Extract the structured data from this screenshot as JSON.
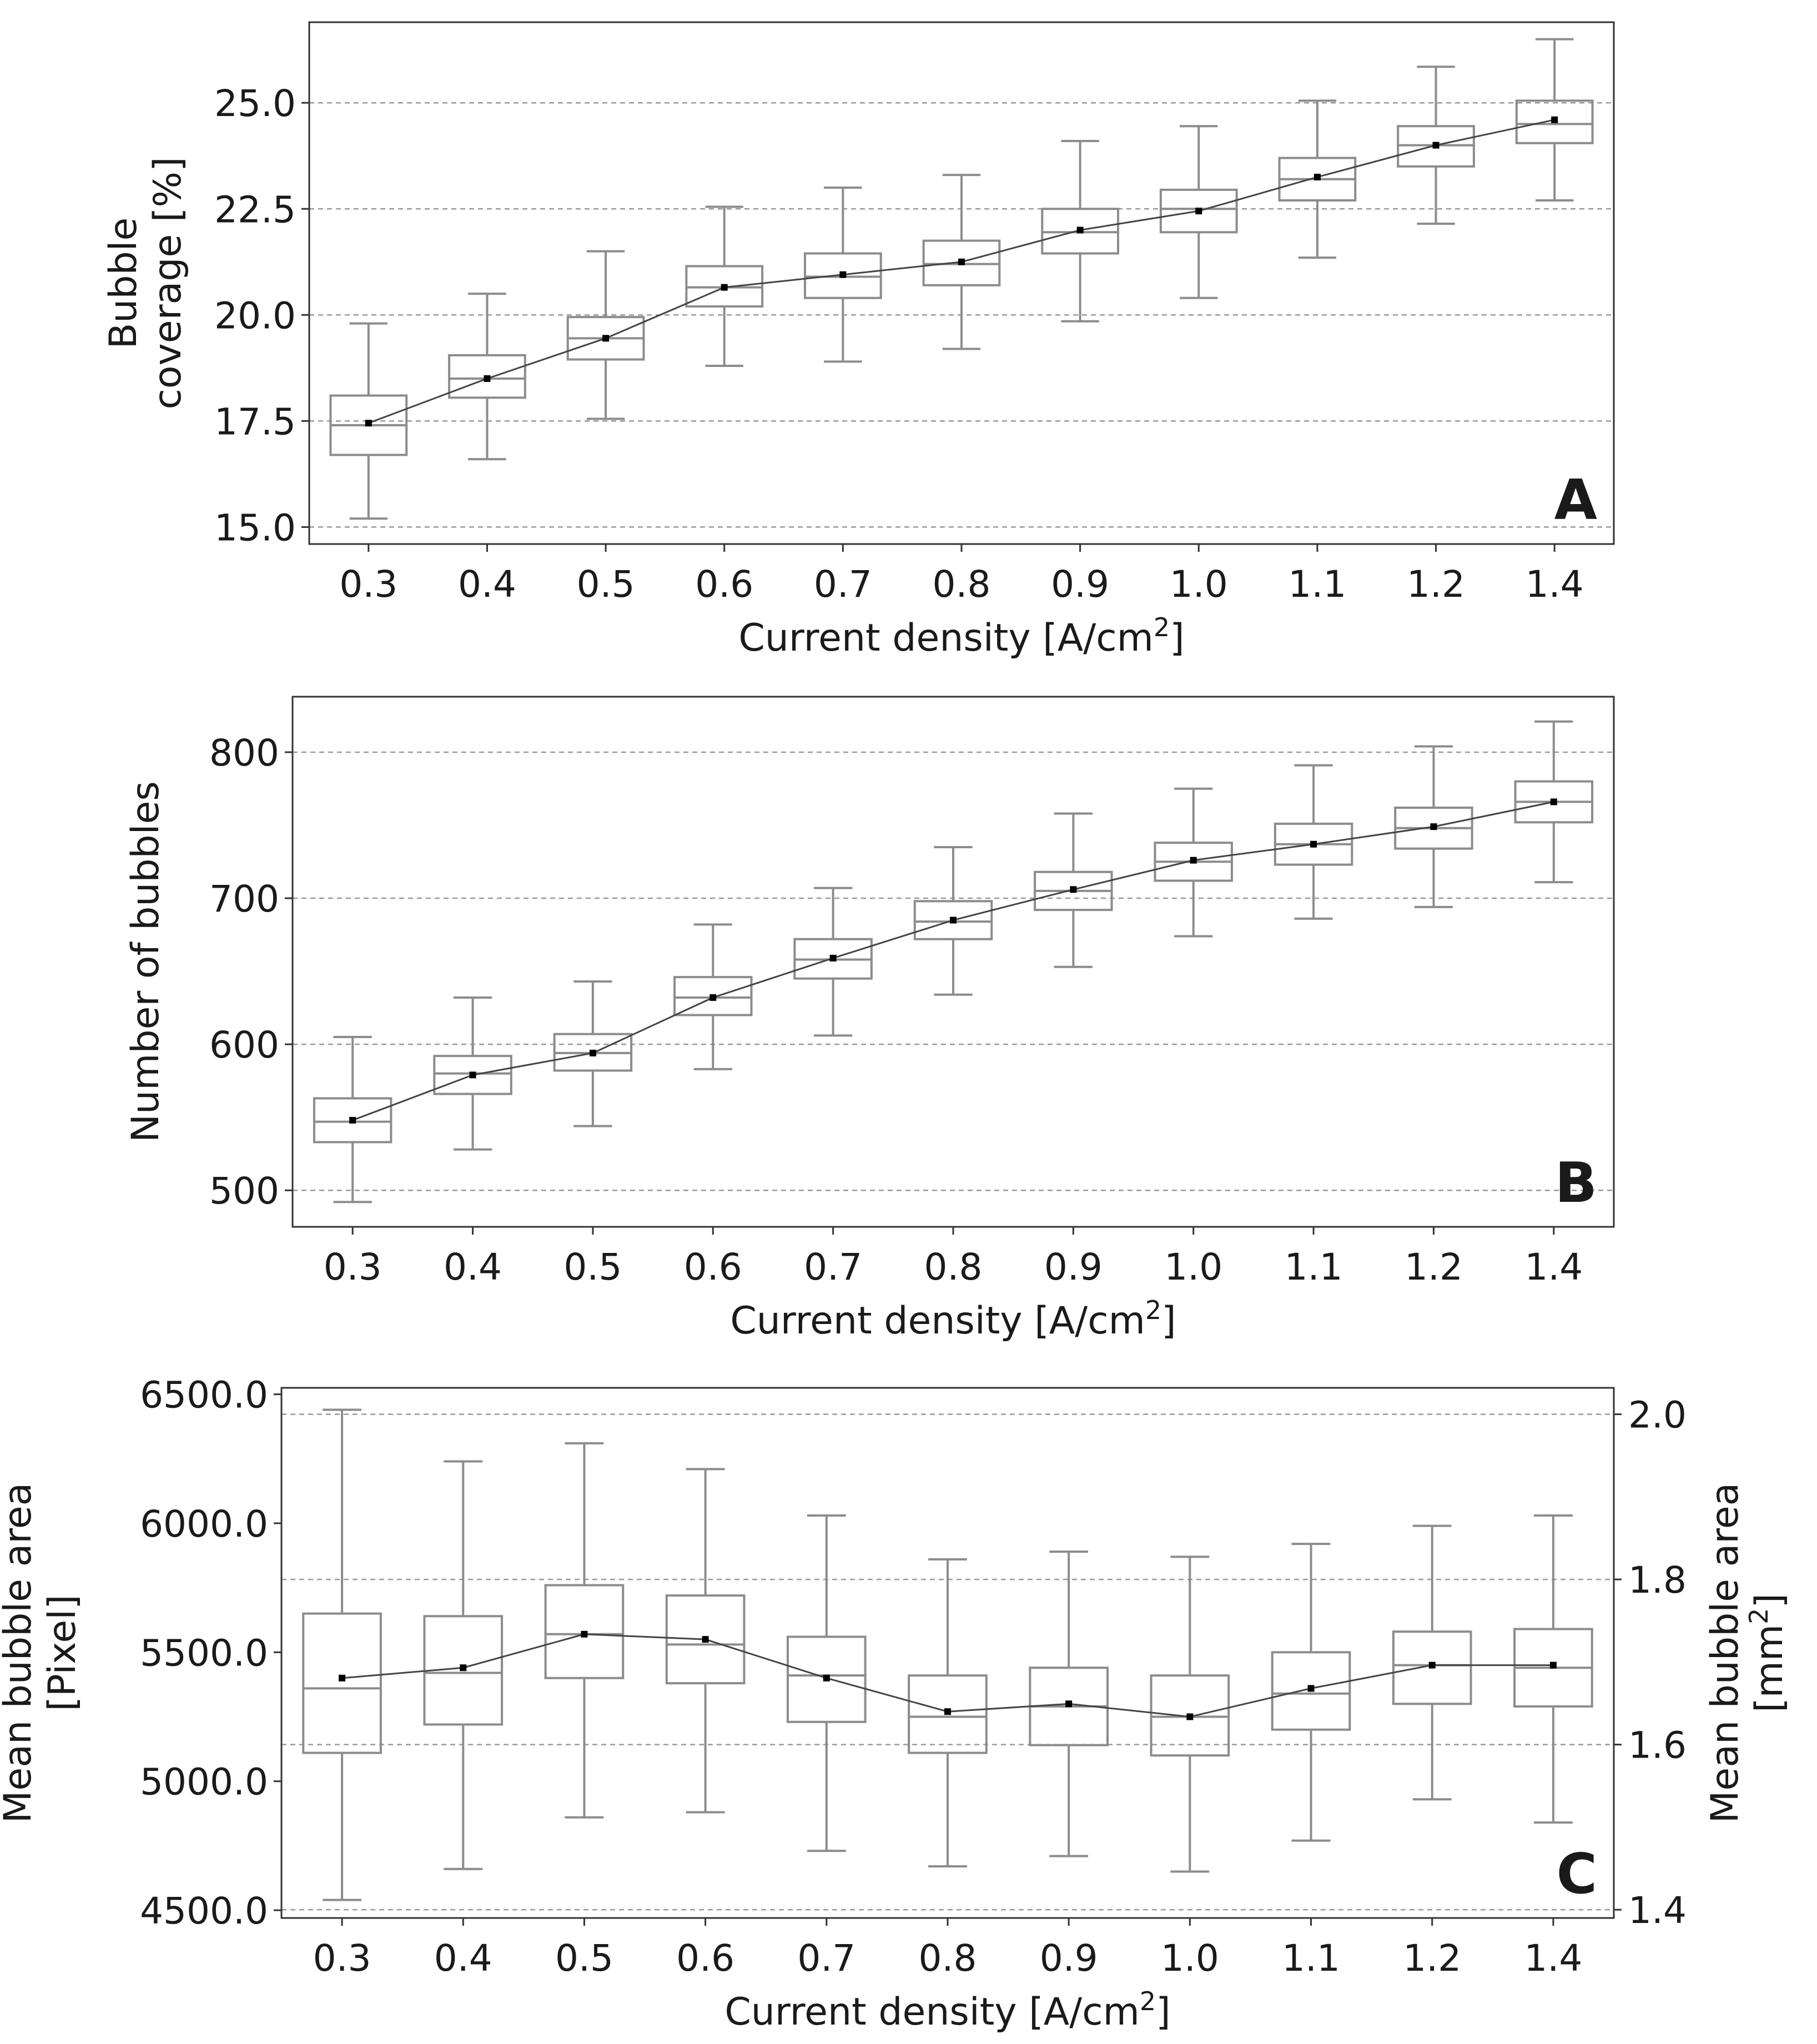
{
  "chart_data": [
    {
      "type": "box",
      "panel_label": "A",
      "title": "",
      "xlabel": "Current density [A/cm",
      "xlabel_sup": "2",
      "xlabel_close": "]",
      "ylabel": [
        "Bubble",
        "coverage [%]"
      ],
      "ylim": [
        14.6,
        26.9
      ],
      "yticks": [
        15.0,
        17.5,
        20.0,
        22.5,
        25.0
      ],
      "ytick_labels": [
        "15.0",
        "17.5",
        "20.0",
        "22.5",
        "25.0"
      ],
      "grid": "horizontal dashed",
      "categories": [
        "0.3",
        "0.4",
        "0.5",
        "0.6",
        "0.7",
        "0.8",
        "0.9",
        "1.0",
        "1.1",
        "1.2",
        "1.4"
      ],
      "boxes": [
        {
          "whislo": 15.2,
          "q1": 16.7,
          "med": 17.4,
          "q3": 18.1,
          "whishi": 19.8
        },
        {
          "whislo": 16.6,
          "q1": 18.05,
          "med": 18.5,
          "q3": 19.05,
          "whishi": 20.5
        },
        {
          "whislo": 17.55,
          "q1": 18.95,
          "med": 19.45,
          "q3": 19.95,
          "whishi": 21.5
        },
        {
          "whislo": 18.8,
          "q1": 20.2,
          "med": 20.65,
          "q3": 21.15,
          "whishi": 22.55
        },
        {
          "whislo": 18.9,
          "q1": 20.4,
          "med": 20.9,
          "q3": 21.45,
          "whishi": 23.0
        },
        {
          "whislo": 19.2,
          "q1": 20.7,
          "med": 21.2,
          "q3": 21.75,
          "whishi": 23.3
        },
        {
          "whislo": 19.85,
          "q1": 21.45,
          "med": 21.95,
          "q3": 22.5,
          "whishi": 24.1
        },
        {
          "whislo": 20.4,
          "q1": 21.95,
          "med": 22.5,
          "q3": 22.95,
          "whishi": 24.45
        },
        {
          "whislo": 21.35,
          "q1": 22.7,
          "med": 23.2,
          "q3": 23.7,
          "whishi": 25.05
        },
        {
          "whislo": 22.15,
          "q1": 23.5,
          "med": 24.0,
          "q3": 24.45,
          "whishi": 25.85
        },
        {
          "whislo": 22.7,
          "q1": 24.05,
          "med": 24.5,
          "q3": 25.05,
          "whishi": 26.5
        }
      ],
      "means": [
        17.45,
        18.5,
        19.45,
        20.65,
        20.95,
        21.25,
        22.0,
        22.45,
        23.25,
        24.0,
        24.6
      ]
    },
    {
      "type": "box",
      "panel_label": "B",
      "title": "",
      "xlabel": "Current density [A/cm",
      "xlabel_sup": "2",
      "xlabel_close": "]",
      "ylabel": [
        "Number of bubbles"
      ],
      "ylim": [
        475,
        838
      ],
      "yticks": [
        500,
        600,
        700,
        800
      ],
      "ytick_labels": [
        "500",
        "600",
        "700",
        "800"
      ],
      "grid": "horizontal dashed",
      "categories": [
        "0.3",
        "0.4",
        "0.5",
        "0.6",
        "0.7",
        "0.8",
        "0.9",
        "1.0",
        "1.1",
        "1.2",
        "1.4"
      ],
      "boxes": [
        {
          "whislo": 492,
          "q1": 533,
          "med": 547,
          "q3": 563,
          "whishi": 605
        },
        {
          "whislo": 528,
          "q1": 566,
          "med": 580,
          "q3": 592,
          "whishi": 632
        },
        {
          "whislo": 544,
          "q1": 582,
          "med": 594,
          "q3": 607,
          "whishi": 643
        },
        {
          "whislo": 583,
          "q1": 620,
          "med": 632,
          "q3": 646,
          "whishi": 682
        },
        {
          "whislo": 606,
          "q1": 645,
          "med": 658,
          "q3": 672,
          "whishi": 707
        },
        {
          "whislo": 634,
          "q1": 672,
          "med": 684,
          "q3": 698,
          "whishi": 735
        },
        {
          "whislo": 653,
          "q1": 692,
          "med": 705,
          "q3": 718,
          "whishi": 758
        },
        {
          "whislo": 674,
          "q1": 712,
          "med": 725,
          "q3": 738,
          "whishi": 775
        },
        {
          "whislo": 686,
          "q1": 723,
          "med": 737,
          "q3": 751,
          "whishi": 791
        },
        {
          "whislo": 694,
          "q1": 734,
          "med": 748,
          "q3": 762,
          "whishi": 804
        },
        {
          "whislo": 711,
          "q1": 752,
          "med": 766,
          "q3": 780,
          "whishi": 821
        }
      ],
      "means": [
        548,
        579,
        594,
        632,
        659,
        685,
        706,
        726,
        737,
        749,
        766
      ]
    },
    {
      "type": "box",
      "panel_label": "C",
      "title": "",
      "xlabel": "Current density [A/cm",
      "xlabel_sup": "2",
      "xlabel_close": "]",
      "ylabel": [
        "Mean bubble area",
        "[Pixel]"
      ],
      "ylim": [
        4470,
        6525
      ],
      "yticks": [
        4500,
        5000,
        5500,
        6000,
        6500
      ],
      "ytick_labels": [
        "4500.0",
        "5000.0",
        "5500.0",
        "6000.0",
        "6500.0"
      ],
      "y2label": [
        "Mean bubble area",
        "[mm",
        "2",
        "]"
      ],
      "y2lim": [
        1.39,
        2.032
      ],
      "y2ticks": [
        1.4,
        1.6,
        1.8,
        2.0
      ],
      "y2tick_labels": [
        "1.4",
        "1.6",
        "1.8",
        "2.0"
      ],
      "grid": "horizontal dashed on secondary axis",
      "categories": [
        "0.3",
        "0.4",
        "0.5",
        "0.6",
        "0.7",
        "0.8",
        "0.9",
        "1.0",
        "1.1",
        "1.2",
        "1.4"
      ],
      "boxes": [
        {
          "whislo": 4540,
          "q1": 5110,
          "med": 5360,
          "q3": 5650,
          "whishi": 6440
        },
        {
          "whislo": 4660,
          "q1": 5220,
          "med": 5420,
          "q3": 5640,
          "whishi": 6240
        },
        {
          "whislo": 4860,
          "q1": 5400,
          "med": 5570,
          "q3": 5760,
          "whishi": 6310
        },
        {
          "whislo": 4880,
          "q1": 5380,
          "med": 5530,
          "q3": 5720,
          "whishi": 6210
        },
        {
          "whislo": 4730,
          "q1": 5230,
          "med": 5410,
          "q3": 5560,
          "whishi": 6030
        },
        {
          "whislo": 4670,
          "q1": 5110,
          "med": 5250,
          "q3": 5410,
          "whishi": 5860
        },
        {
          "whislo": 4710,
          "q1": 5140,
          "med": 5290,
          "q3": 5440,
          "whishi": 5890
        },
        {
          "whislo": 4650,
          "q1": 5100,
          "med": 5250,
          "q3": 5410,
          "whishi": 5870
        },
        {
          "whislo": 4770,
          "q1": 5200,
          "med": 5340,
          "q3": 5500,
          "whishi": 5920
        },
        {
          "whislo": 4930,
          "q1": 5300,
          "med": 5450,
          "q3": 5580,
          "whishi": 5990
        },
        {
          "whislo": 4840,
          "q1": 5290,
          "med": 5440,
          "q3": 5590,
          "whishi": 6030
        }
      ],
      "means": [
        5400,
        5440,
        5570,
        5550,
        5400,
        5270,
        5300,
        5250,
        5360,
        5450,
        5450
      ]
    }
  ]
}
